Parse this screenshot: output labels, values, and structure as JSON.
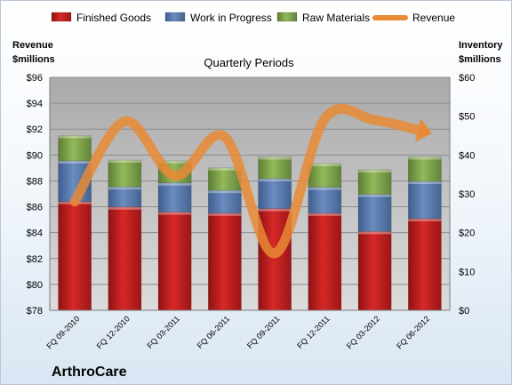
{
  "chart_data": {
    "type": "bar",
    "subtitle": "Quarterly Periods",
    "brand": "ArthroCare",
    "categories": [
      "FQ 09-2010",
      "FQ 12-2010",
      "FQ 03-2011",
      "FQ 06-2011",
      "FQ 09-2011",
      "FQ 12-2011",
      "FQ 03-2012",
      "FQ 06-2012"
    ],
    "left_axis": {
      "label_line1": "Revenue",
      "label_line2": "$millions",
      "min": 78,
      "max": 96,
      "step": 2,
      "prefix": "$"
    },
    "right_axis": {
      "label_line1": "Inventory",
      "label_line2": "$millions",
      "min": 0,
      "max": 60,
      "step": 10,
      "prefix": "$"
    },
    "series": [
      {
        "name": "Finished Goods",
        "axis": "right",
        "stack": true,
        "color": "#c00000",
        "values": [
          28.0,
          26.6,
          25.3,
          25.0,
          26.2,
          25.0,
          20.3,
          23.6
        ]
      },
      {
        "name": "Work in Progress",
        "axis": "right",
        "stack": true,
        "color": "#4f72a8",
        "values": [
          10.5,
          5.2,
          7.5,
          5.9,
          7.7,
          6.7,
          9.6,
          9.6
        ]
      },
      {
        "name": "Raw Materials",
        "axis": "right",
        "stack": true,
        "color": "#7ea64a",
        "values": [
          6.5,
          6.9,
          5.7,
          5.8,
          5.6,
          6.1,
          6.3,
          6.3
        ]
      },
      {
        "name": "Revenue",
        "axis": "left",
        "type": "line",
        "color": "#e98a35",
        "values": [
          86.4,
          92.6,
          88.4,
          91.4,
          82.4,
          92.8,
          92.7,
          91.8
        ]
      }
    ],
    "grid": true,
    "legend": "top"
  }
}
